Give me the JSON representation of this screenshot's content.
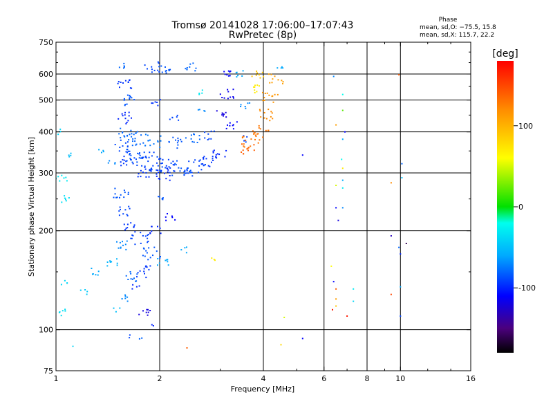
{
  "chart_data": {
    "type": "scatter",
    "title": "Tromsø 20141028 17:06:00–17:07:43",
    "subtitle": "RwPretec (8p)",
    "xlabel": "Frequency [MHz]",
    "ylabel": "Stationary phase Virtual Height [km]",
    "x_scale": "log",
    "y_scale": "log",
    "xlim": [
      1,
      16
    ],
    "ylim": [
      75,
      750
    ],
    "x_ticks": [
      {
        "value": 1,
        "label": "1"
      },
      {
        "value": 2,
        "label": "2"
      },
      {
        "value": 4,
        "label": "4"
      },
      {
        "value": 6,
        "label": "6"
      },
      {
        "value": 8,
        "label": "8"
      },
      {
        "value": 10,
        "label": "10"
      },
      {
        "value": 16,
        "label": "16"
      }
    ],
    "y_ticks": [
      {
        "value": 75,
        "label": "75"
      },
      {
        "value": 100,
        "label": "100"
      },
      {
        "value": 200,
        "label": "200"
      },
      {
        "value": 300,
        "label": "300"
      },
      {
        "value": 400,
        "label": "400"
      },
      {
        "value": 500,
        "label": "500"
      },
      {
        "value": 600,
        "label": "600"
      },
      {
        "value": 750,
        "label": "750"
      }
    ],
    "x_grid": [
      2,
      4,
      6,
      8,
      10
    ],
    "y_grid": [
      100,
      200,
      300,
      400,
      500,
      600
    ],
    "grid": true,
    "stats": {
      "heading": "Phase",
      "o_label": "mean, sd,O: −75.5, 15.8",
      "x_label": "mean, sd,X: 115.7, 22.2"
    },
    "colorbar": {
      "label": "[deg]",
      "min": -180,
      "max": 180,
      "ticks": [
        {
          "value": 100,
          "label": "100"
        },
        {
          "value": 0,
          "label": "0"
        },
        {
          "value": -100,
          "label": "-100"
        }
      ],
      "stops": [
        {
          "v": -180,
          "color": "#000000"
        },
        {
          "v": -150,
          "color": "#4b007d"
        },
        {
          "v": -110,
          "color": "#0000ff"
        },
        {
          "v": -60,
          "color": "#00aaff"
        },
        {
          "v": -20,
          "color": "#00ffee"
        },
        {
          "v": 0,
          "color": "#00e000"
        },
        {
          "v": 60,
          "color": "#ffff00"
        },
        {
          "v": 120,
          "color": "#ff8c00"
        },
        {
          "v": 180,
          "color": "#ff0000"
        }
      ]
    },
    "series": [
      {
        "values": [
          {
            "f": 1.56,
            "h": 640,
            "p": -80,
            "n": 5
          },
          {
            "f": 1.58,
            "h": 560,
            "p": -95,
            "n": 12
          },
          {
            "f": 1.6,
            "h": 500,
            "p": -85,
            "n": 12
          },
          {
            "f": 1.6,
            "h": 440,
            "p": -100,
            "n": 12
          },
          {
            "f": 1.62,
            "h": 400,
            "p": -80,
            "n": 14
          },
          {
            "f": 1.58,
            "h": 360,
            "p": -90,
            "n": 14
          },
          {
            "f": 1.6,
            "h": 325,
            "p": -95,
            "n": 10
          },
          {
            "f": 1.7,
            "h": 340,
            "p": -85,
            "n": 16
          },
          {
            "f": 1.8,
            "h": 330,
            "p": -90,
            "n": 16
          },
          {
            "f": 1.95,
            "h": 320,
            "p": -88,
            "n": 18
          },
          {
            "f": 2.1,
            "h": 315,
            "p": -92,
            "n": 18
          },
          {
            "f": 2.3,
            "h": 310,
            "p": -85,
            "n": 16
          },
          {
            "f": 2.55,
            "h": 315,
            "p": -90,
            "n": 14
          },
          {
            "f": 2.8,
            "h": 325,
            "p": -95,
            "n": 12
          },
          {
            "f": 3.0,
            "h": 340,
            "p": -100,
            "n": 10
          },
          {
            "f": 1.7,
            "h": 380,
            "p": -80,
            "n": 14
          },
          {
            "f": 1.9,
            "h": 375,
            "p": -75,
            "n": 14
          },
          {
            "f": 2.2,
            "h": 370,
            "p": -85,
            "n": 12
          },
          {
            "f": 2.5,
            "h": 380,
            "p": -80,
            "n": 10
          },
          {
            "f": 2.8,
            "h": 390,
            "p": -90,
            "n": 8
          },
          {
            "f": 1.8,
            "h": 300,
            "p": -95,
            "n": 12
          },
          {
            "f": 2.05,
            "h": 297,
            "p": -100,
            "n": 12
          },
          {
            "f": 2.4,
            "h": 298,
            "p": -90,
            "n": 8
          },
          {
            "f": 1.9,
            "h": 630,
            "p": -90,
            "n": 10
          },
          {
            "f": 2.05,
            "h": 625,
            "p": -85,
            "n": 10
          },
          {
            "f": 2.45,
            "h": 630,
            "p": -80,
            "n": 8
          },
          {
            "f": 1.95,
            "h": 490,
            "p": -95,
            "n": 6
          },
          {
            "f": 2.2,
            "h": 440,
            "p": -90,
            "n": 6
          },
          {
            "f": 2.6,
            "h": 530,
            "p": -30,
            "n": 4
          },
          {
            "f": 2.65,
            "h": 460,
            "p": -70,
            "n": 4
          },
          {
            "f": 3.0,
            "h": 450,
            "p": -120,
            "n": 8
          },
          {
            "f": 3.15,
            "h": 520,
            "p": -115,
            "n": 10
          },
          {
            "f": 3.2,
            "h": 600,
            "p": -110,
            "n": 8
          },
          {
            "f": 3.25,
            "h": 420,
            "p": -110,
            "n": 8
          },
          {
            "f": 3.45,
            "h": 600,
            "p": -60,
            "n": 6
          },
          {
            "f": 3.55,
            "h": 480,
            "p": -70,
            "n": 6
          },
          {
            "f": 3.5,
            "h": 380,
            "p": -90,
            "n": 6
          },
          {
            "f": 3.7,
            "h": 370,
            "p": 130,
            "n": 14
          },
          {
            "f": 3.9,
            "h": 400,
            "p": 130,
            "n": 14
          },
          {
            "f": 4.05,
            "h": 450,
            "p": 120,
            "n": 12
          },
          {
            "f": 4.2,
            "h": 510,
            "p": 115,
            "n": 12
          },
          {
            "f": 4.35,
            "h": 580,
            "p": 110,
            "n": 10
          },
          {
            "f": 3.75,
            "h": 540,
            "p": 70,
            "n": 8
          },
          {
            "f": 3.85,
            "h": 600,
            "p": 90,
            "n": 8
          },
          {
            "f": 3.6,
            "h": 355,
            "p": 140,
            "n": 10
          },
          {
            "f": 4.5,
            "h": 630,
            "p": -60,
            "n": 4
          },
          {
            "f": 1.02,
            "h": 400,
            "p": -40,
            "n": 4
          },
          {
            "f": 1.04,
            "h": 290,
            "p": -30,
            "n": 8
          },
          {
            "f": 1.06,
            "h": 250,
            "p": -35,
            "n": 6
          },
          {
            "f": 1.1,
            "h": 340,
            "p": -50,
            "n": 4
          },
          {
            "f": 1.35,
            "h": 350,
            "p": -60,
            "n": 4
          },
          {
            "f": 1.45,
            "h": 320,
            "p": -70,
            "n": 4
          },
          {
            "f": 1.55,
            "h": 260,
            "p": -85,
            "n": 12
          },
          {
            "f": 1.6,
            "h": 230,
            "p": -90,
            "n": 10
          },
          {
            "f": 1.62,
            "h": 205,
            "p": -95,
            "n": 10
          },
          {
            "f": 1.55,
            "h": 180,
            "p": -70,
            "n": 10
          },
          {
            "f": 1.45,
            "h": 160,
            "p": -55,
            "n": 8
          },
          {
            "f": 1.75,
            "h": 190,
            "p": -90,
            "n": 14
          },
          {
            "f": 1.9,
            "h": 170,
            "p": -85,
            "n": 14
          },
          {
            "f": 1.8,
            "h": 150,
            "p": -95,
            "n": 12
          },
          {
            "f": 1.65,
            "h": 145,
            "p": -80,
            "n": 10
          },
          {
            "f": 2.05,
            "h": 160,
            "p": -60,
            "n": 8
          },
          {
            "f": 1.95,
            "h": 200,
            "p": -100,
            "n": 8
          },
          {
            "f": 2.15,
            "h": 220,
            "p": -110,
            "n": 6
          },
          {
            "f": 2.05,
            "h": 250,
            "p": -85,
            "n": 6
          },
          {
            "f": 2.35,
            "h": 175,
            "p": -60,
            "n": 4
          },
          {
            "f": 1.3,
            "h": 150,
            "p": -60,
            "n": 6
          },
          {
            "f": 1.2,
            "h": 130,
            "p": -45,
            "n": 4
          },
          {
            "f": 1.05,
            "h": 140,
            "p": -40,
            "n": 4
          },
          {
            "f": 1.05,
            "h": 113,
            "p": -35,
            "n": 6
          },
          {
            "f": 1.6,
            "h": 125,
            "p": -70,
            "n": 6
          },
          {
            "f": 1.7,
            "h": 135,
            "p": -100,
            "n": 4
          },
          {
            "f": 1.5,
            "h": 115,
            "p": -50,
            "n": 3
          },
          {
            "f": 1.8,
            "h": 112,
            "p": -120,
            "n": 8
          },
          {
            "f": 1.9,
            "h": 102,
            "p": -100,
            "n": 2
          },
          {
            "f": 1.62,
            "h": 95,
            "p": -90,
            "n": 2
          },
          {
            "f": 1.75,
            "h": 94,
            "p": -80,
            "n": 2
          },
          {
            "f": 2.4,
            "h": 88,
            "p": 140,
            "n": 1
          },
          {
            "f": 1.12,
            "h": 89,
            "p": -40,
            "n": 1
          },
          {
            "f": 2.85,
            "h": 165,
            "p": 70,
            "n": 3
          },
          {
            "f": 4.6,
            "h": 109,
            "p": 50,
            "n": 1
          },
          {
            "f": 4.5,
            "h": 90,
            "p": 80,
            "n": 1
          },
          {
            "f": 5.2,
            "h": 94,
            "p": -110,
            "n": 1
          },
          {
            "f": 5.2,
            "h": 340,
            "p": -110,
            "n": 1
          },
          {
            "f": 6.4,
            "h": 590,
            "p": -70,
            "n": 1
          },
          {
            "f": 6.8,
            "h": 520,
            "p": -20,
            "n": 1
          },
          {
            "f": 6.8,
            "h": 465,
            "p": 20,
            "n": 1
          },
          {
            "f": 6.5,
            "h": 420,
            "p": 110,
            "n": 1
          },
          {
            "f": 6.9,
            "h": 400,
            "p": -110,
            "n": 1
          },
          {
            "f": 6.8,
            "h": 380,
            "p": -60,
            "n": 1
          },
          {
            "f": 6.75,
            "h": 330,
            "p": -20,
            "n": 1
          },
          {
            "f": 6.8,
            "h": 310,
            "p": 70,
            "n": 1
          },
          {
            "f": 6.8,
            "h": 285,
            "p": -60,
            "n": 1
          },
          {
            "f": 6.5,
            "h": 275,
            "p": 50,
            "n": 1
          },
          {
            "f": 6.8,
            "h": 270,
            "p": -30,
            "n": 1
          },
          {
            "f": 6.5,
            "h": 235,
            "p": -110,
            "n": 1
          },
          {
            "f": 6.8,
            "h": 235,
            "p": -70,
            "n": 1
          },
          {
            "f": 6.6,
            "h": 215,
            "p": -120,
            "n": 1
          },
          {
            "f": 6.3,
            "h": 156,
            "p": 60,
            "n": 1
          },
          {
            "f": 6.4,
            "h": 140,
            "p": -110,
            "n": 1
          },
          {
            "f": 6.5,
            "h": 133,
            "p": 140,
            "n": 1
          },
          {
            "f": 6.5,
            "h": 124,
            "p": 110,
            "n": 1
          },
          {
            "f": 6.5,
            "h": 118,
            "p": 90,
            "n": 1
          },
          {
            "f": 6.35,
            "h": 115,
            "p": 170,
            "n": 1
          },
          {
            "f": 7.0,
            "h": 110,
            "p": 170,
            "n": 1
          },
          {
            "f": 7.3,
            "h": 133,
            "p": -30,
            "n": 1
          },
          {
            "f": 7.3,
            "h": 122,
            "p": -40,
            "n": 1
          },
          {
            "f": 9.4,
            "h": 280,
            "p": 120,
            "n": 1
          },
          {
            "f": 9.4,
            "h": 193,
            "p": -130,
            "n": 1
          },
          {
            "f": 9.4,
            "h": 128,
            "p": 150,
            "n": 1
          },
          {
            "f": 9.9,
            "h": 597,
            "p": 140,
            "n": 1
          },
          {
            "f": 10.1,
            "h": 320,
            "p": -80,
            "n": 1
          },
          {
            "f": 10.1,
            "h": 290,
            "p": -50,
            "n": 1
          },
          {
            "f": 10.4,
            "h": 183,
            "p": -160,
            "n": 1
          },
          {
            "f": 9.9,
            "h": 178,
            "p": -80,
            "n": 1
          },
          {
            "f": 10.0,
            "h": 170,
            "p": -100,
            "n": 1
          },
          {
            "f": 10.0,
            "h": 135,
            "p": -60,
            "n": 1
          },
          {
            "f": 10.0,
            "h": 110,
            "p": -90,
            "n": 1
          }
        ]
      }
    ]
  }
}
